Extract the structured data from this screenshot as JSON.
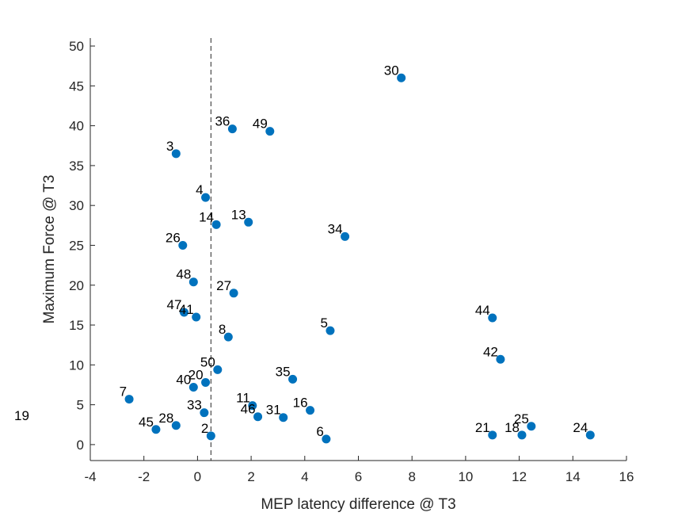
{
  "chart_data": {
    "type": "scatter",
    "title": "",
    "xlabel": "MEP latency difference @ T3",
    "ylabel": "Maximum Force @ T3",
    "xlim": [
      -4,
      16
    ],
    "ylim": [
      -2,
      51
    ],
    "xticks": [
      -4,
      -2,
      0,
      2,
      4,
      6,
      8,
      10,
      12,
      14,
      16
    ],
    "yticks": [
      0,
      5,
      10,
      15,
      20,
      25,
      30,
      35,
      40,
      45,
      50
    ],
    "grid": false,
    "marker_color": "#0072BD",
    "reference_line": {
      "x": 0.5,
      "style": "dashed",
      "color": "#262626"
    },
    "stray_label": "19",
    "points": [
      {
        "label": "30",
        "x": 7.6,
        "y": 46.0
      },
      {
        "label": "36",
        "x": 1.3,
        "y": 39.6
      },
      {
        "label": "49",
        "x": 2.7,
        "y": 39.3
      },
      {
        "label": "3",
        "x": -0.8,
        "y": 36.5
      },
      {
        "label": "4",
        "x": 0.3,
        "y": 31.0
      },
      {
        "label": "14",
        "x": 0.7,
        "y": 27.6
      },
      {
        "label": "13",
        "x": 1.9,
        "y": 27.9
      },
      {
        "label": "34",
        "x": 5.5,
        "y": 26.1
      },
      {
        "label": "26",
        "x": -0.55,
        "y": 25.0
      },
      {
        "label": "48",
        "x": -0.15,
        "y": 20.4
      },
      {
        "label": "27",
        "x": 1.35,
        "y": 19.0
      },
      {
        "label": "47",
        "x": -0.5,
        "y": 16.6
      },
      {
        "label": "41",
        "x": -0.05,
        "y": 16.0
      },
      {
        "label": "44",
        "x": 11.0,
        "y": 15.9
      },
      {
        "label": "5",
        "x": 4.95,
        "y": 14.3
      },
      {
        "label": "8",
        "x": 1.15,
        "y": 13.5
      },
      {
        "label": "42",
        "x": 11.3,
        "y": 10.7
      },
      {
        "label": "50",
        "x": 0.75,
        "y": 9.4
      },
      {
        "label": "35",
        "x": 3.55,
        "y": 8.2
      },
      {
        "label": "20",
        "x": 0.3,
        "y": 7.8
      },
      {
        "label": "40",
        "x": -0.15,
        "y": 7.2
      },
      {
        "label": "7",
        "x": -2.55,
        "y": 5.7
      },
      {
        "label": "11",
        "x": 2.05,
        "y": 4.9
      },
      {
        "label": "16",
        "x": 4.2,
        "y": 4.3
      },
      {
        "label": "33",
        "x": 0.25,
        "y": 4.0
      },
      {
        "label": "46",
        "x": 2.25,
        "y": 3.5
      },
      {
        "label": "31",
        "x": 3.2,
        "y": 3.4
      },
      {
        "label": "28",
        "x": -0.8,
        "y": 2.4
      },
      {
        "label": "25",
        "x": 12.45,
        "y": 2.3
      },
      {
        "label": "45",
        "x": -1.55,
        "y": 1.9
      },
      {
        "label": "21",
        "x": 11.0,
        "y": 1.2
      },
      {
        "label": "18",
        "x": 12.1,
        "y": 1.2
      },
      {
        "label": "24",
        "x": 14.65,
        "y": 1.2
      },
      {
        "label": "2",
        "x": 0.5,
        "y": 1.1
      },
      {
        "label": "6",
        "x": 4.8,
        "y": 0.7
      }
    ]
  }
}
